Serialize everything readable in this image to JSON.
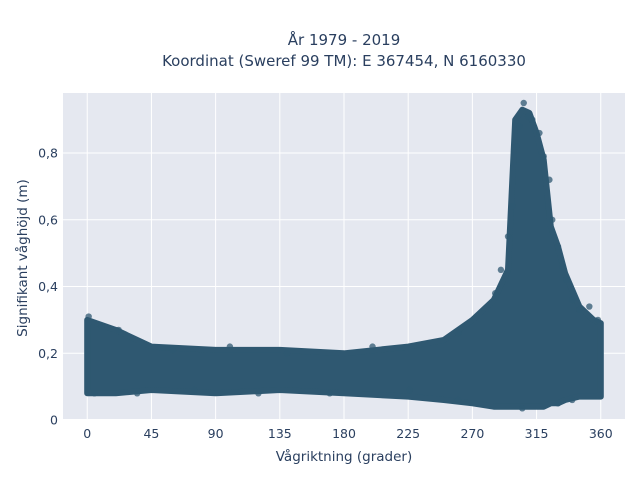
{
  "chart_data": {
    "type": "scatter",
    "title_line1": "År 1979 - 2019",
    "title_line2": "Koordinat (Sweref 99 TM): E 367454, N 6160330",
    "xlabel": "Vågriktning (grader)",
    "ylabel": "Signifikant våghöjd (m)",
    "xlim": [
      -17,
      377
    ],
    "ylim": [
      0,
      0.98
    ],
    "xticks": [
      0,
      45,
      90,
      135,
      180,
      225,
      270,
      315,
      360
    ],
    "yticks": [
      0,
      0.2,
      0.4,
      0.6,
      0.8
    ],
    "ytick_labels": [
      "0",
      "0,2",
      "0,4",
      "0,6",
      "0,8"
    ],
    "grid": true,
    "legend": "none",
    "marker_color": "#2f5871",
    "background_color": "#e5e8f0",
    "envelope": [
      {
        "x": 0,
        "low": 0.08,
        "high": 0.3
      },
      {
        "x": 20,
        "low": 0.08,
        "high": 0.27
      },
      {
        "x": 45,
        "low": 0.09,
        "high": 0.22
      },
      {
        "x": 90,
        "low": 0.08,
        "high": 0.21
      },
      {
        "x": 135,
        "low": 0.09,
        "high": 0.21
      },
      {
        "x": 180,
        "low": 0.08,
        "high": 0.2
      },
      {
        "x": 225,
        "low": 0.07,
        "high": 0.22
      },
      {
        "x": 250,
        "low": 0.06,
        "high": 0.24
      },
      {
        "x": 270,
        "low": 0.05,
        "high": 0.3
      },
      {
        "x": 285,
        "low": 0.04,
        "high": 0.36
      },
      {
        "x": 295,
        "low": 0.04,
        "high": 0.45
      },
      {
        "x": 300,
        "low": 0.04,
        "high": 0.9
      },
      {
        "x": 305,
        "low": 0.04,
        "high": 0.93
      },
      {
        "x": 310,
        "low": 0.04,
        "high": 0.92
      },
      {
        "x": 315,
        "low": 0.04,
        "high": 0.86
      },
      {
        "x": 320,
        "low": 0.04,
        "high": 0.78
      },
      {
        "x": 325,
        "low": 0.05,
        "high": 0.58
      },
      {
        "x": 330,
        "low": 0.05,
        "high": 0.52
      },
      {
        "x": 335,
        "low": 0.06,
        "high": 0.44
      },
      {
        "x": 345,
        "low": 0.07,
        "high": 0.34
      },
      {
        "x": 355,
        "low": 0.07,
        "high": 0.3
      },
      {
        "x": 360,
        "low": 0.07,
        "high": 0.29
      }
    ],
    "points": [
      {
        "x": 1,
        "y": 0.31
      },
      {
        "x": 10,
        "y": 0.28
      },
      {
        "x": 22,
        "y": 0.27
      },
      {
        "x": 60,
        "y": 0.21
      },
      {
        "x": 100,
        "y": 0.22
      },
      {
        "x": 140,
        "y": 0.2
      },
      {
        "x": 200,
        "y": 0.22
      },
      {
        "x": 226,
        "y": 0.09
      },
      {
        "x": 260,
        "y": 0.26
      },
      {
        "x": 286,
        "y": 0.38
      },
      {
        "x": 290,
        "y": 0.45
      },
      {
        "x": 295,
        "y": 0.55
      },
      {
        "x": 298,
        "y": 0.64
      },
      {
        "x": 301,
        "y": 0.82
      },
      {
        "x": 303,
        "y": 0.88
      },
      {
        "x": 306,
        "y": 0.95
      },
      {
        "x": 309,
        "y": 0.91
      },
      {
        "x": 312,
        "y": 0.9
      },
      {
        "x": 317,
        "y": 0.86
      },
      {
        "x": 320,
        "y": 0.79
      },
      {
        "x": 324,
        "y": 0.72
      },
      {
        "x": 326,
        "y": 0.6
      },
      {
        "x": 330,
        "y": 0.52
      },
      {
        "x": 333,
        "y": 0.46
      },
      {
        "x": 336,
        "y": 0.42
      },
      {
        "x": 340,
        "y": 0.36
      },
      {
        "x": 345,
        "y": 0.33
      },
      {
        "x": 352,
        "y": 0.34
      },
      {
        "x": 358,
        "y": 0.3
      },
      {
        "x": 340,
        "y": 0.06
      },
      {
        "x": 330,
        "y": 0.05
      },
      {
        "x": 305,
        "y": 0.035
      },
      {
        "x": 260,
        "y": 0.06
      },
      {
        "x": 170,
        "y": 0.08
      },
      {
        "x": 120,
        "y": 0.08
      },
      {
        "x": 75,
        "y": 0.09
      },
      {
        "x": 35,
        "y": 0.08
      },
      {
        "x": 5,
        "y": 0.08
      }
    ]
  }
}
